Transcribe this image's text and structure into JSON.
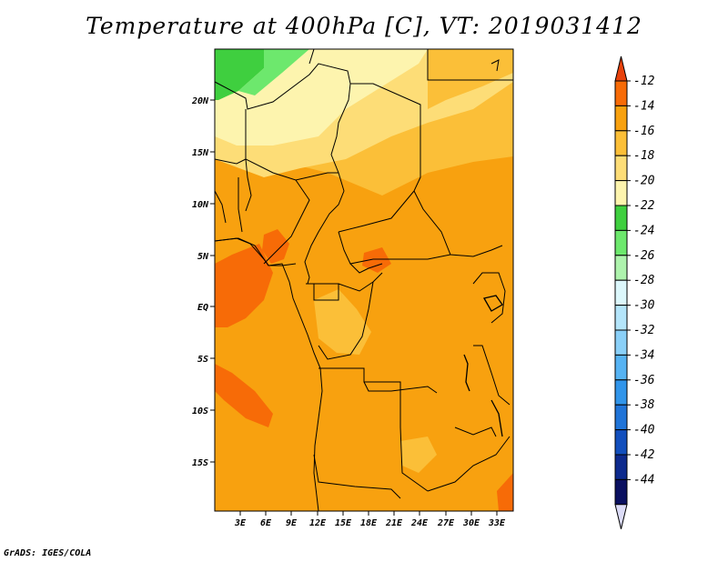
{
  "title": "Temperature at 400hPa [C], VT: 2019031412",
  "credit": "GrADS: IGES/COLA",
  "map": {
    "lat_ticks": [
      "20N",
      "15N",
      "10N",
      "5N",
      "EQ",
      "5S",
      "10S",
      "15S"
    ],
    "lon_ticks": [
      "3E",
      "6E",
      "9E",
      "12E",
      "15E",
      "18E",
      "21E",
      "24E",
      "27E",
      "30E",
      "33E"
    ]
  },
  "legend": {
    "labels": [
      "-12",
      "-14",
      "-16",
      "-18",
      "-20",
      "-22",
      "-24",
      "-26",
      "-28",
      "-30",
      "-32",
      "-34",
      "-36",
      "-38",
      "-40",
      "-42",
      "-44"
    ],
    "colors": [
      "#e8420c",
      "#f76b07",
      "#f8a10f",
      "#fbbf38",
      "#fddd77",
      "#fdf4ae",
      "#3fcf3f",
      "#6de86d",
      "#aef3ad",
      "#dcf7fb",
      "#b4e5fa",
      "#8ad0f8",
      "#56b3f3",
      "#3195ea",
      "#2074d8",
      "#124fbd",
      "#0d2a8d",
      "#0a1060",
      "#dcdcf7"
    ]
  }
}
